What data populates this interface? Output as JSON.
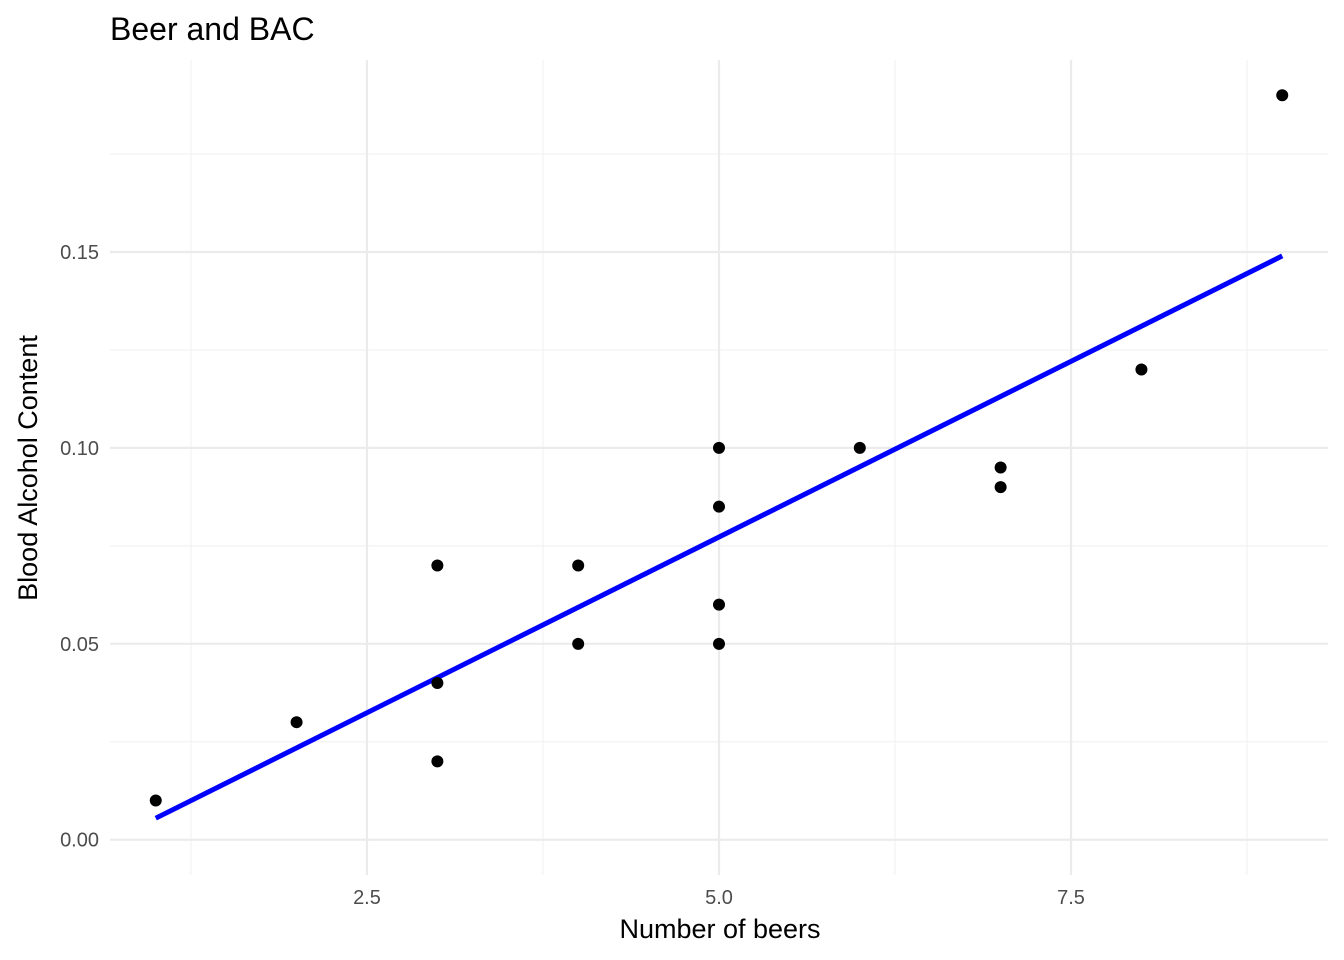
{
  "chart_data": {
    "type": "scatter",
    "title": "Beer and BAC",
    "xlabel": "Number of beers",
    "ylabel": "Blood Alcohol Content",
    "xlim": [
      0.675,
      9.325
    ],
    "ylim": [
      -0.009,
      0.199
    ],
    "x_ticks": [
      2.5,
      5.0,
      7.5
    ],
    "x_tick_labels": [
      "2.5",
      "5.0",
      "7.5"
    ],
    "x_minor": [
      1.25,
      3.75,
      6.25,
      8.75
    ],
    "y_ticks": [
      0.0,
      0.05,
      0.1,
      0.15
    ],
    "y_tick_labels": [
      "0.00",
      "0.05",
      "0.10",
      "0.15"
    ],
    "y_minor": [
      0.025,
      0.075,
      0.125,
      0.175
    ],
    "grid": true,
    "legend": "none",
    "point_color": "#000000",
    "line_color": "#0000ff",
    "points": [
      {
        "x": 1,
        "y": 0.01
      },
      {
        "x": 2,
        "y": 0.03
      },
      {
        "x": 3,
        "y": 0.02
      },
      {
        "x": 3,
        "y": 0.04
      },
      {
        "x": 3,
        "y": 0.07
      },
      {
        "x": 4,
        "y": 0.05
      },
      {
        "x": 4,
        "y": 0.07
      },
      {
        "x": 5,
        "y": 0.05
      },
      {
        "x": 5,
        "y": 0.06
      },
      {
        "x": 5,
        "y": 0.085
      },
      {
        "x": 5,
        "y": 0.1
      },
      {
        "x": 6,
        "y": 0.1
      },
      {
        "x": 7,
        "y": 0.09
      },
      {
        "x": 7,
        "y": 0.095
      },
      {
        "x": 8,
        "y": 0.12
      },
      {
        "x": 9,
        "y": 0.19
      }
    ],
    "fit_line": {
      "x": [
        1,
        9
      ],
      "y": [
        0.0055,
        0.149
      ]
    }
  }
}
